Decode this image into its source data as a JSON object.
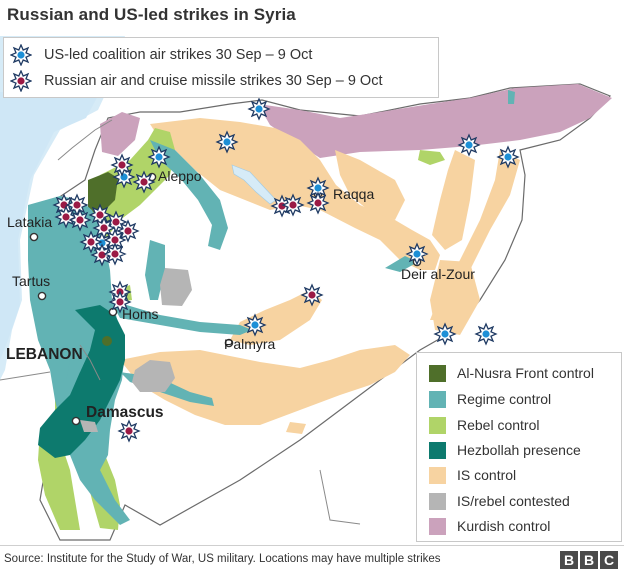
{
  "title": "Russian and US-led strikes in Syria",
  "legend_strikes": [
    {
      "label": "US-led coalition air strikes 30 Sep – 9 Oct",
      "icon": "blue-star-burst-icon",
      "color": "#1d8fd6"
    },
    {
      "label": "Russian air and cruise missile strikes 30 Sep – 9 Oct",
      "icon": "red-star-burst-icon",
      "color": "#9b1a45"
    }
  ],
  "legend_control": [
    {
      "label": "Al-Nusra Front control",
      "color": "#4f6f2a"
    },
    {
      "label": "Regime control",
      "color": "#62b3b4"
    },
    {
      "label": "Rebel control",
      "color": "#b0d468"
    },
    {
      "label": "Hezbollah presence",
      "color": "#0d7a6e"
    },
    {
      "label": "IS control",
      "color": "#f7d3a1"
    },
    {
      "label": "IS/rebel contested",
      "color": "#b5b5b5"
    },
    {
      "label": "Kurdish control",
      "color": "#cba2bc"
    }
  ],
  "cities": {
    "aleppo": "Aleppo",
    "raqqa": "Raqqa",
    "latakia": "Latakia",
    "tartus": "Tartus",
    "homs": "Homs",
    "palmyra": "Palmyra",
    "deir_al_zour": "Deir al-Zour",
    "damascus": "Damascus",
    "lebanon": "LEBANON"
  },
  "source": "Source: Institute for the Study of War, US military. Locations may have multiple strikes",
  "logo": [
    "B",
    "B",
    "C"
  ]
}
